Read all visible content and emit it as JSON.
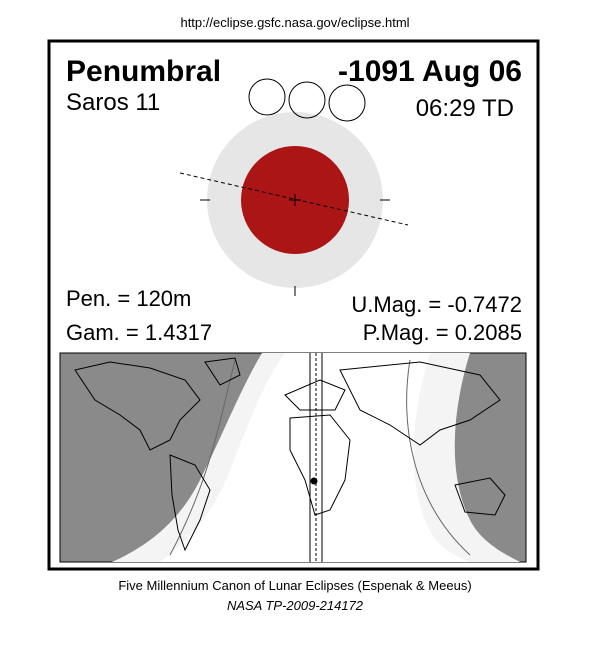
{
  "header": {
    "url": "http://eclipse.gsfc.nasa.gov/eclipse.html"
  },
  "eclipse": {
    "type": "Penumbral",
    "date": "-1091 Aug 06",
    "saros": "Saros  11",
    "time": "06:29 TD",
    "pen": "Pen. = 120m",
    "gam": "Gam. = 1.4317",
    "umag": "U.Mag. = -0.7472",
    "pmag": "P.Mag. = 0.2085"
  },
  "footer": {
    "canon": "Five Millennium Canon of Lunar Eclipses (Espenak & Meeus)",
    "ref": "NASA TP-2009-214172"
  }
}
